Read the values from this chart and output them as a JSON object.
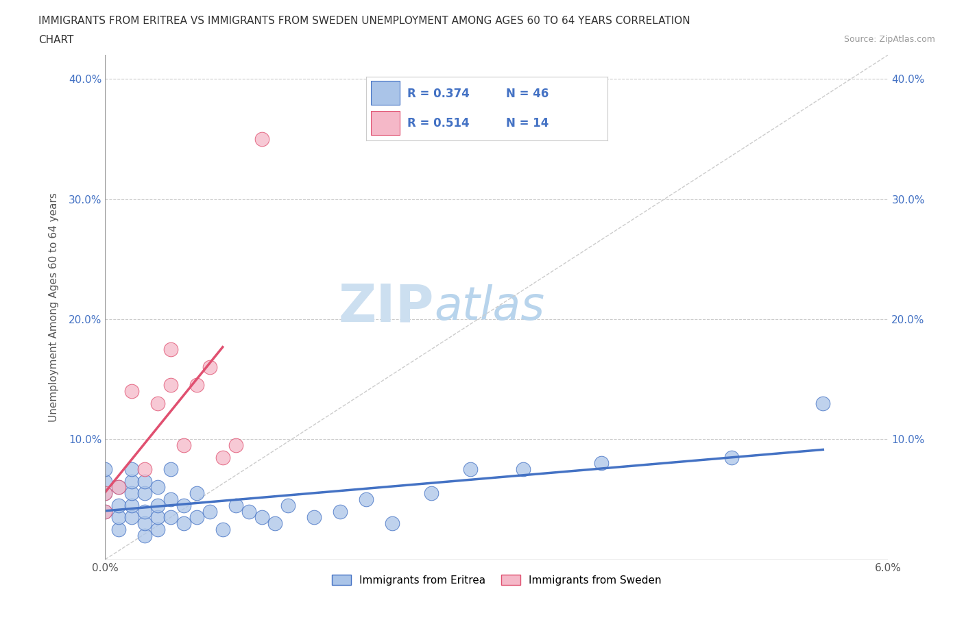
{
  "title_line1": "IMMIGRANTS FROM ERITREA VS IMMIGRANTS FROM SWEDEN UNEMPLOYMENT AMONG AGES 60 TO 64 YEARS CORRELATION",
  "title_line2": "CHART",
  "source": "Source: ZipAtlas.com",
  "ylabel": "Unemployment Among Ages 60 to 64 years",
  "xlim": [
    0.0,
    0.06
  ],
  "ylim": [
    0.0,
    0.42
  ],
  "xticks": [
    0.0,
    0.01,
    0.02,
    0.03,
    0.04,
    0.05,
    0.06
  ],
  "yticks": [
    0.0,
    0.1,
    0.2,
    0.3,
    0.4
  ],
  "R_eritrea": 0.374,
  "N_eritrea": 46,
  "R_sweden": 0.514,
  "N_sweden": 14,
  "color_eritrea": "#aac4e8",
  "color_sweden": "#f5b8c8",
  "line_color_eritrea": "#4472c4",
  "line_color_sweden": "#e05070",
  "legend_text_color": "#4472c4",
  "watermark_zip": "ZIP",
  "watermark_atlas": "atlas",
  "watermark_color_zip": "#ccdff0",
  "watermark_color_atlas": "#b8d4ec",
  "diag_line_color": "#cccccc",
  "background_color": "#ffffff",
  "grid_color": "#cccccc",
  "eritrea_x": [
    0.0,
    0.0,
    0.0,
    0.0,
    0.001,
    0.001,
    0.001,
    0.001,
    0.002,
    0.002,
    0.002,
    0.002,
    0.002,
    0.003,
    0.003,
    0.003,
    0.003,
    0.003,
    0.004,
    0.004,
    0.004,
    0.004,
    0.005,
    0.005,
    0.005,
    0.006,
    0.006,
    0.007,
    0.007,
    0.008,
    0.009,
    0.01,
    0.011,
    0.012,
    0.013,
    0.014,
    0.016,
    0.018,
    0.02,
    0.022,
    0.025,
    0.028,
    0.032,
    0.038,
    0.048,
    0.055
  ],
  "eritrea_y": [
    0.04,
    0.055,
    0.065,
    0.075,
    0.025,
    0.035,
    0.045,
    0.06,
    0.035,
    0.045,
    0.055,
    0.065,
    0.075,
    0.02,
    0.03,
    0.04,
    0.055,
    0.065,
    0.025,
    0.035,
    0.045,
    0.06,
    0.035,
    0.05,
    0.075,
    0.03,
    0.045,
    0.035,
    0.055,
    0.04,
    0.025,
    0.045,
    0.04,
    0.035,
    0.03,
    0.045,
    0.035,
    0.04,
    0.05,
    0.03,
    0.055,
    0.075,
    0.075,
    0.08,
    0.085,
    0.13
  ],
  "sweden_x": [
    0.0,
    0.0,
    0.001,
    0.002,
    0.003,
    0.004,
    0.005,
    0.005,
    0.006,
    0.007,
    0.008,
    0.009,
    0.01,
    0.012
  ],
  "sweden_y": [
    0.04,
    0.055,
    0.06,
    0.14,
    0.075,
    0.13,
    0.145,
    0.175,
    0.095,
    0.145,
    0.16,
    0.085,
    0.095,
    0.35
  ],
  "sweden_trend_xrange": [
    0.0,
    0.009
  ],
  "eritrea_trend_xrange": [
    0.0,
    0.055
  ]
}
